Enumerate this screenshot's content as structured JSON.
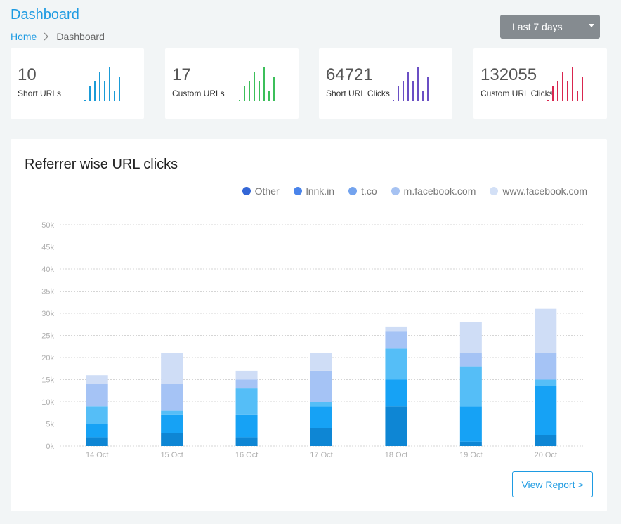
{
  "header": {
    "title": "Dashboard",
    "breadcrumb": {
      "home": "Home",
      "current": "Dashboard"
    },
    "range_select": {
      "selected": "Last 7 days",
      "icon": "caret-down-icon"
    }
  },
  "stats": [
    {
      "value": "10",
      "label": "Short URLs",
      "color": "#1a9bd7",
      "spark": [
        0,
        3,
        4,
        6,
        4,
        7,
        2,
        5
      ]
    },
    {
      "value": "17",
      "label": "Custom URLs",
      "color": "#3cbf5a",
      "spark": [
        0,
        3,
        4,
        6,
        4,
        7,
        2,
        5
      ]
    },
    {
      "value": "64721",
      "label": "Short URL Clicks",
      "color": "#6a4fc4",
      "spark": [
        0,
        3,
        4,
        6,
        4,
        7,
        2,
        5
      ]
    },
    {
      "value": "132055",
      "label": "Custom URL Clicks",
      "color": "#d9264f",
      "spark": [
        0,
        3,
        4,
        6,
        4,
        7,
        2,
        5
      ]
    }
  ],
  "chart_card": {
    "title": "Referrer wise URL clicks",
    "view_report_label": "View Report >"
  },
  "chart_data": {
    "type": "bar",
    "stacked": true,
    "title": "Referrer wise URL clicks",
    "categories": [
      "14 Oct",
      "15 Oct",
      "16 Oct",
      "17 Oct",
      "18 Oct",
      "19 Oct",
      "20 Oct"
    ],
    "ylim": [
      0,
      50000
    ],
    "yticks": [
      "0k",
      "5k",
      "10k",
      "15k",
      "20k",
      "25k",
      "30k",
      "35k",
      "40k",
      "45k",
      "50k"
    ],
    "grid": true,
    "legend_position": "top-right",
    "series": [
      {
        "name": "Other",
        "legend_color": "#3366d6",
        "bar_color": "#0e86d4",
        "values": [
          2000,
          3000,
          2000,
          4000,
          9000,
          1000,
          2500
        ]
      },
      {
        "name": "lnnk.in",
        "legend_color": "#4a84ea",
        "bar_color": "#16a2f5",
        "values": [
          3000,
          4000,
          5000,
          5000,
          6000,
          8000,
          11000
        ]
      },
      {
        "name": "t.co",
        "legend_color": "#73a3ee",
        "bar_color": "#55bef7",
        "values": [
          4000,
          1000,
          6000,
          1000,
          7000,
          9000,
          1500
        ]
      },
      {
        "name": "m.facebook.com",
        "legend_color": "#a6c2f2",
        "bar_color": "#a5c3f5",
        "values": [
          5000,
          6000,
          2000,
          7000,
          4000,
          3000,
          6000
        ]
      },
      {
        "name": "www.facebook.com",
        "legend_color": "#d3e0f6",
        "bar_color": "#cfddf6",
        "values": [
          2000,
          7000,
          2000,
          4000,
          1000,
          7000,
          10000
        ]
      }
    ]
  }
}
